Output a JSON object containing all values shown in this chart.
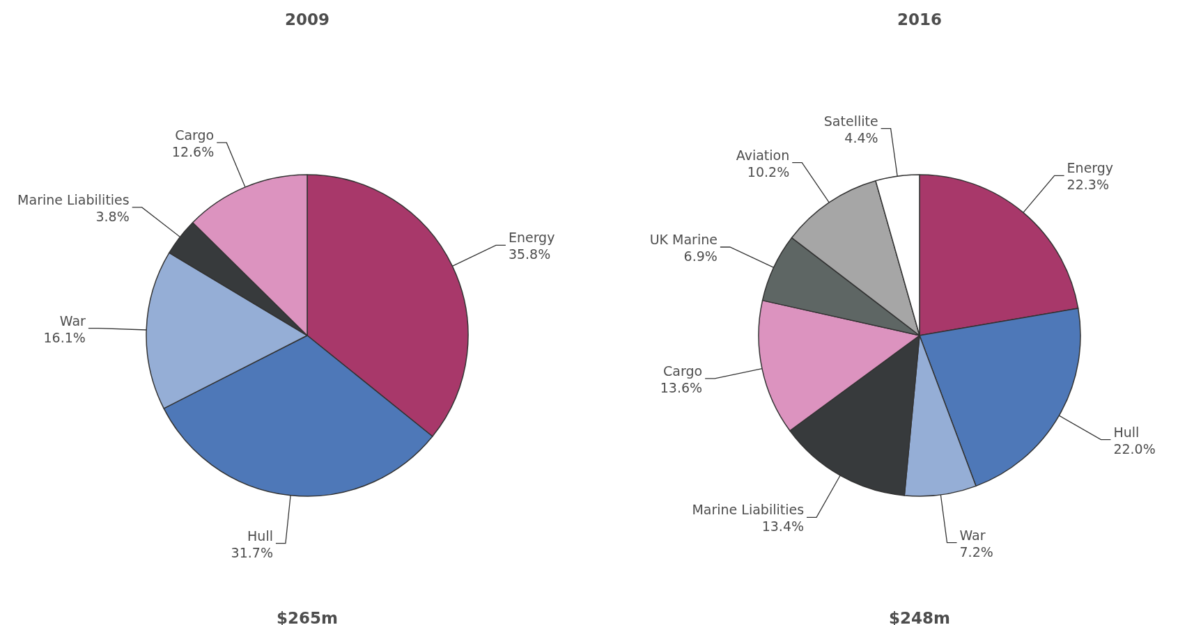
{
  "chart_data": [
    {
      "type": "pie",
      "title": "2009",
      "categories": [
        "Energy",
        "Hull",
        "War",
        "Marine Liabilities",
        "Cargo"
      ],
      "values": [
        35.8,
        31.7,
        16.1,
        3.8,
        12.6
      ],
      "value_labels": [
        "35.8%",
        "31.7%",
        "16.1%",
        "3.8%",
        "12.6%"
      ],
      "colors": [
        "#a8386a",
        "#4e78b8",
        "#95aed6",
        "#373a3c",
        "#dc93bf"
      ],
      "annotations": [
        "$265m"
      ]
    },
    {
      "type": "pie",
      "title": "2016",
      "categories": [
        "Energy",
        "Hull",
        "War",
        "Marine Liabilities",
        "Cargo",
        "UK Marine",
        "Aviation",
        "Satellite"
      ],
      "values": [
        22.3,
        22.0,
        7.2,
        13.4,
        13.6,
        6.9,
        10.2,
        4.4
      ],
      "value_labels": [
        "22.3%",
        "22.0%",
        "7.2%",
        "13.4%",
        "13.6%",
        "6.9%",
        "10.2%",
        "4.4%"
      ],
      "colors": [
        "#a8386a",
        "#4e78b8",
        "#95aed6",
        "#373a3c",
        "#dc93bf",
        "#5e6664",
        "#a6a6a6",
        "#ffffff"
      ],
      "annotations": [
        "$248m"
      ]
    }
  ]
}
